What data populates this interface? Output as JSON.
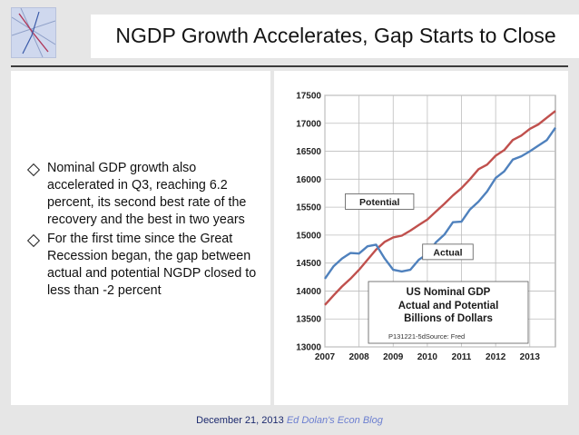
{
  "slide": {
    "title": "NGDP Growth Accelerates, Gap Starts to Close",
    "bullets": [
      "Nominal GDP growth also accelerated in Q3, reaching 6.2 percent, its second best rate of the recovery and the best in two years",
      "For the first time since the Great Recession began, the gap between actual and potential NGDP closed to less than -2 percent"
    ],
    "footer": {
      "date": "December 21, 2013",
      "blog": "Ed Dolan's Econ Blog"
    }
  },
  "chart_data": {
    "type": "line",
    "title": "US Nominal GDP",
    "subtitle_lines": [
      "Actual and Potential",
      "Billions of Dollars"
    ],
    "source": "P131221-5dSource: Fred",
    "xlim": [
      2007,
      2013.75
    ],
    "ylim": [
      13000,
      17500
    ],
    "xticks": [
      "2007",
      "2008",
      "2009",
      "2010",
      "2011",
      "2012",
      "2013"
    ],
    "yticks": [
      "13000",
      "13500",
      "14000",
      "14500",
      "15000",
      "15500",
      "16000",
      "16500",
      "17000",
      "17500"
    ],
    "grid": true,
    "colors": {
      "potential": "#c0504d",
      "actual": "#4f81bd"
    },
    "series": [
      {
        "name": "Potential",
        "x": [
          2007,
          2007.25,
          2007.5,
          2007.75,
          2008,
          2008.25,
          2008.5,
          2008.75,
          2009,
          2009.25,
          2009.5,
          2009.75,
          2010,
          2010.25,
          2010.5,
          2010.75,
          2011,
          2011.25,
          2011.5,
          2011.75,
          2012,
          2012.25,
          2012.5,
          2012.75,
          2013,
          2013.25,
          2013.5,
          2013.75
        ],
        "values": [
          13750,
          13920,
          14080,
          14220,
          14380,
          14560,
          14740,
          14880,
          14960,
          14990,
          15080,
          15180,
          15280,
          15420,
          15560,
          15710,
          15840,
          16000,
          16180,
          16260,
          16420,
          16520,
          16700,
          16780,
          16900,
          16980,
          17100,
          17220
        ]
      },
      {
        "name": "Actual",
        "x": [
          2007,
          2007.25,
          2007.5,
          2007.75,
          2008,
          2008.25,
          2008.5,
          2008.75,
          2009,
          2009.25,
          2009.5,
          2009.75,
          2010,
          2010.25,
          2010.5,
          2010.75,
          2011,
          2011.25,
          2011.5,
          2011.75,
          2012,
          2012.25,
          2012.5,
          2012.75,
          2013,
          2013.25,
          2013.5,
          2013.75
        ],
        "values": [
          14220,
          14440,
          14580,
          14680,
          14670,
          14800,
          14830,
          14580,
          14380,
          14350,
          14380,
          14560,
          14660,
          14870,
          15010,
          15230,
          15240,
          15460,
          15600,
          15780,
          16020,
          16140,
          16350,
          16410,
          16500,
          16600,
          16700,
          16920
        ]
      }
    ],
    "annotations": [
      {
        "label": "Potential",
        "x": 2008.6,
        "y": 15600
      },
      {
        "label": "Actual",
        "x": 2010.6,
        "y": 14700
      }
    ]
  }
}
